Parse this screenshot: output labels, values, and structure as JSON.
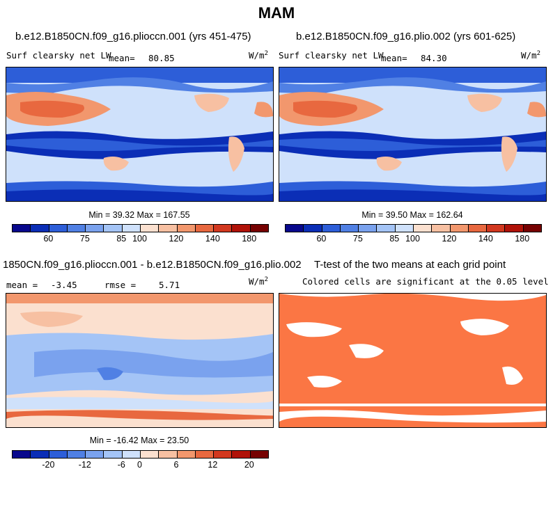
{
  "title": "MAM",
  "colors": {
    "blue_levels": [
      "#08088c",
      "#0b2eb6",
      "#2d5ed8",
      "#5080e4",
      "#7aa2ee",
      "#a4c4f6",
      "#cfe1fb"
    ],
    "red_levels": [
      "#fbe0cf",
      "#f7c0a2",
      "#f2976d",
      "#e8683f",
      "#d2381f",
      "#b01208",
      "#760101"
    ],
    "sig_fill": "#fb7644"
  },
  "panels": [
    {
      "case_title": "b.e12.B1850CN.f09_g16.plioccn.001 (yrs 451-475)",
      "variable": "Surf clearsky net LW",
      "mean_label": "mean=",
      "mean_value": "80.85",
      "units": "W/m",
      "units_exp": "2",
      "min_label": "Min =",
      "min_value": "39.32",
      "max_label": "Max =",
      "max_value": "167.55"
    },
    {
      "case_title": "b.e12.B1850CN.f09_g16.plio.002 (yrs 601-625)",
      "variable": "Surf clearsky net LW",
      "mean_label": "mean=",
      "mean_value": "84.30",
      "units": "W/m",
      "units_exp": "2",
      "min_label": "Min =",
      "min_value": "39.50",
      "max_label": "Max =",
      "max_value": "162.64"
    },
    {
      "case_title": "1850CN.f09_g16.plioccn.001 - b.e12.B1850CN.f09_g16.plio.002",
      "mean_label": "mean =",
      "mean_value": "-3.45",
      "rmse_label": "rmse =",
      "rmse_value": "5.71",
      "units": "W/m",
      "units_exp": "2",
      "min_label": "Min =",
      "min_value": "-16.42",
      "max_label": "Max =",
      "max_value": "23.50"
    },
    {
      "case_title": "T-test of the two means at each grid point",
      "subtitle": "Colored cells are significant at the 0.05 level"
    }
  ],
  "colorbars": [
    {
      "ticks": [
        "60",
        "75",
        "85",
        "100",
        "120",
        "140",
        "180"
      ]
    },
    {
      "ticks": [
        "60",
        "75",
        "85",
        "100",
        "120",
        "140",
        "180"
      ]
    },
    {
      "ticks": [
        "-20",
        "-12",
        "-6",
        "0",
        "6",
        "12",
        "20"
      ]
    }
  ],
  "chart_data": {
    "type": "heatmap",
    "title": "MAM",
    "season": "MAM",
    "variable": "Surf clearsky net LW",
    "units": "W/m2",
    "maps": [
      {
        "name": "b.e12.B1850CN.f09_g16.plioccn.001 (yrs 451-475)",
        "mean": 80.85,
        "min": 39.32,
        "max": 167.55,
        "contour_levels": [
          60,
          75,
          85,
          100,
          120,
          140,
          180
        ]
      },
      {
        "name": "b.e12.B1850CN.f09_g16.plio.002 (yrs 601-625)",
        "mean": 84.3,
        "min": 39.5,
        "max": 162.64,
        "contour_levels": [
          60,
          75,
          85,
          100,
          120,
          140,
          180
        ]
      },
      {
        "name": "plioccn.001 - plio.002",
        "mean": -3.45,
        "rmse": 5.71,
        "min": -16.42,
        "max": 23.5,
        "contour_levels": [
          -20,
          -12,
          -6,
          0,
          6,
          12,
          20
        ]
      },
      {
        "name": "T-test of the two means at each grid point",
        "significance_level": 0.05
      }
    ]
  }
}
